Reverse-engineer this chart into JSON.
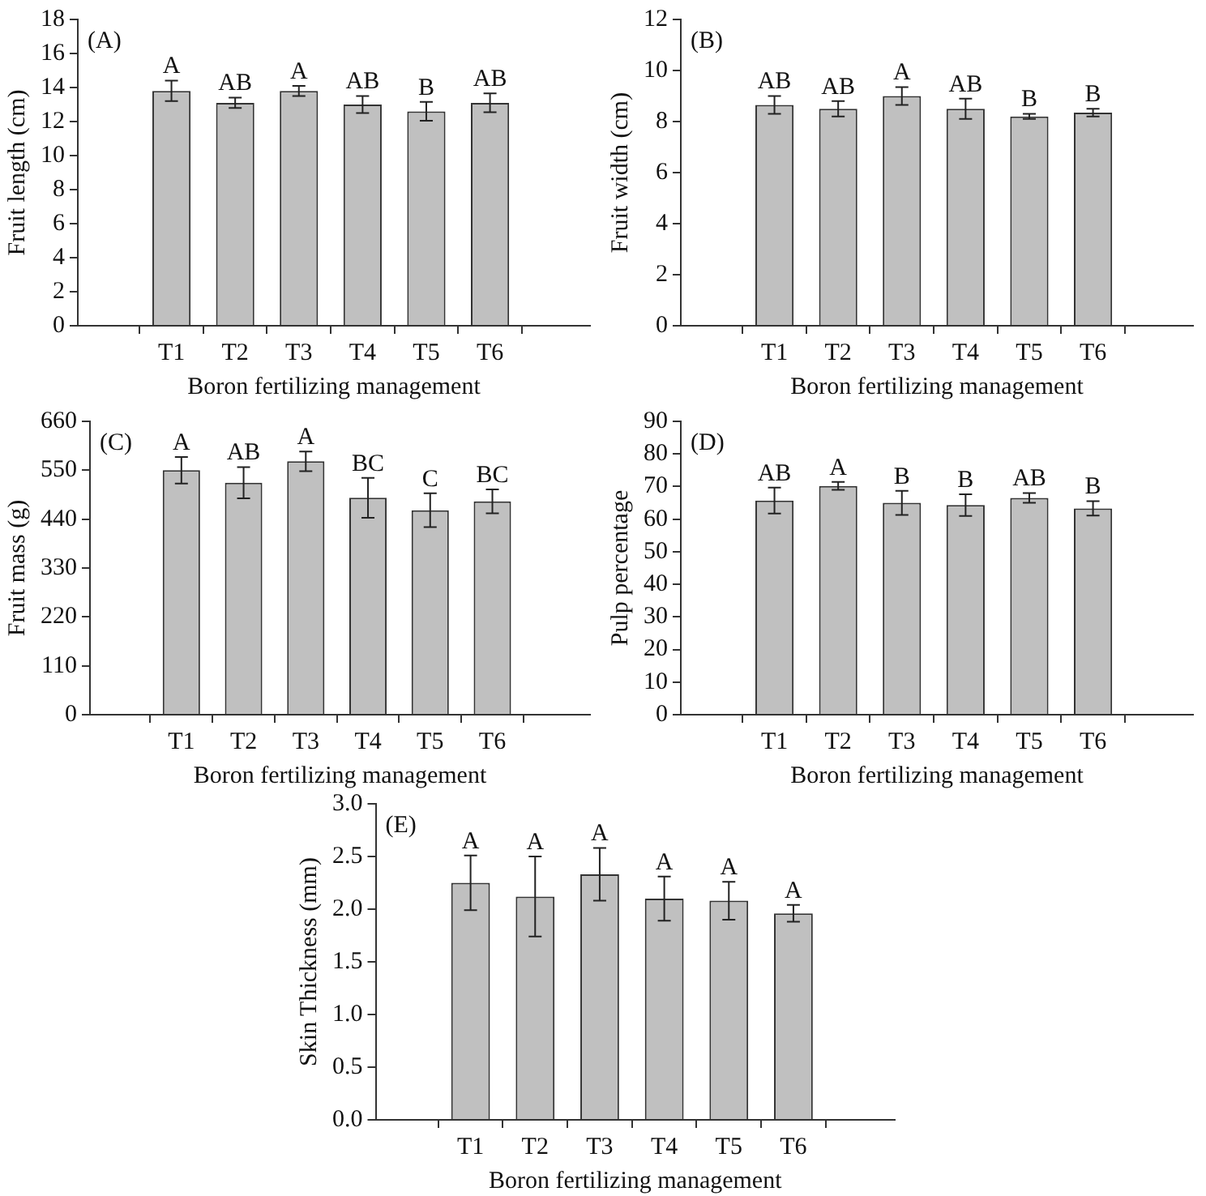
{
  "chart_data": [
    {
      "type": "bar",
      "categories": [
        "T1",
        "T2",
        "T3",
        "T4",
        "T5",
        "T6"
      ],
      "values": [
        13.8,
        13.1,
        13.8,
        13.0,
        12.6,
        13.1
      ],
      "errors": [
        0.6,
        0.3,
        0.3,
        0.5,
        0.55,
        0.55
      ],
      "color": "#c0c0c0",
      "xlabel": "Boron fertilizing management",
      "ylabel": "Fruit length (cm)",
      "ylim": [
        0,
        18
      ],
      "yticks": [
        0,
        2,
        4,
        6,
        8,
        10,
        12,
        14,
        16,
        18
      ],
      "grid": false,
      "legend": false,
      "annotations": [
        "(A)",
        {
          "text": "A",
          "x": "T1",
          "y": 14.4
        },
        {
          "text": "AB",
          "x": "T2",
          "y": 13.4
        },
        {
          "text": "A",
          "x": "T3",
          "y": 14.1
        },
        {
          "text": "AB",
          "x": "T4",
          "y": 13.5
        },
        {
          "text": "B",
          "x": "T5",
          "y": 13.15
        },
        {
          "text": "AB",
          "x": "T6",
          "y": 13.65
        }
      ]
    },
    {
      "type": "bar",
      "categories": [
        "T1",
        "T2",
        "T3",
        "T4",
        "T5",
        "T6"
      ],
      "values": [
        8.65,
        8.5,
        9.0,
        8.5,
        8.2,
        8.35
      ],
      "errors": [
        0.35,
        0.3,
        0.35,
        0.4,
        0.1,
        0.15
      ],
      "color": "#c0c0c0",
      "xlabel": "Boron fertilizing management",
      "ylabel": "Fruit width (cm)",
      "ylim": [
        0,
        12
      ],
      "yticks": [
        0,
        2,
        4,
        6,
        8,
        10,
        12
      ],
      "grid": false,
      "legend": false,
      "annotations": [
        "(B)",
        {
          "text": "AB",
          "x": "T1",
          "y": 9.0
        },
        {
          "text": "AB",
          "x": "T2",
          "y": 8.8
        },
        {
          "text": "A",
          "x": "T3",
          "y": 9.35
        },
        {
          "text": "AB",
          "x": "T4",
          "y": 8.9
        },
        {
          "text": "B",
          "x": "T5",
          "y": 8.3
        },
        {
          "text": "B",
          "x": "T6",
          "y": 8.5
        }
      ]
    },
    {
      "type": "bar",
      "categories": [
        "T1",
        "T2",
        "T3",
        "T4",
        "T5",
        "T6"
      ],
      "values": [
        550,
        522,
        570,
        488,
        460,
        480
      ],
      "errors": [
        30,
        35,
        22,
        45,
        38,
        27
      ],
      "color": "#c0c0c0",
      "xlabel": "Boron fertilizing management",
      "ylabel": "Fruit mass (g)",
      "ylim": [
        0,
        660
      ],
      "yticks": [
        0,
        110,
        220,
        330,
        440,
        550,
        660
      ],
      "grid": false,
      "legend": false,
      "annotations": [
        "(C)",
        {
          "text": "A",
          "x": "T1",
          "y": 580
        },
        {
          "text": "AB",
          "x": "T2",
          "y": 557
        },
        {
          "text": "A",
          "x": "T3",
          "y": 592
        },
        {
          "text": "BC",
          "x": "T4",
          "y": 533
        },
        {
          "text": "C",
          "x": "T5",
          "y": 498
        },
        {
          "text": "BC",
          "x": "T6",
          "y": 507
        }
      ]
    },
    {
      "type": "bar",
      "categories": [
        "T1",
        "T2",
        "T3",
        "T4",
        "T5",
        "T6"
      ],
      "values": [
        65.7,
        70.2,
        65.0,
        64.3,
        66.5,
        63.3
      ],
      "errors": [
        4,
        1.2,
        3.7,
        3.3,
        1.5,
        2.2
      ],
      "color": "#c0c0c0",
      "xlabel": "Boron fertilizing management",
      "ylabel": "Pulp percentage",
      "ylim": [
        0,
        90
      ],
      "yticks": [
        0,
        10,
        20,
        30,
        40,
        50,
        60,
        70,
        80,
        90
      ],
      "grid": false,
      "legend": false,
      "annotations": [
        "(D)",
        {
          "text": "AB",
          "x": "T1",
          "y": 69.7
        },
        {
          "text": "A",
          "x": "T2",
          "y": 71.4
        },
        {
          "text": "B",
          "x": "T3",
          "y": 68.7
        },
        {
          "text": "B",
          "x": "T4",
          "y": 67.6
        },
        {
          "text": "AB",
          "x": "T5",
          "y": 68
        },
        {
          "text": "B",
          "x": "T6",
          "y": 65.5
        }
      ]
    },
    {
      "type": "bar",
      "categories": [
        "T1",
        "T2",
        "T3",
        "T4",
        "T5",
        "T6"
      ],
      "values": [
        2.25,
        2.12,
        2.33,
        2.1,
        2.08,
        1.96
      ],
      "errors": [
        0.26,
        0.38,
        0.25,
        0.21,
        0.18,
        0.08
      ],
      "color": "#c0c0c0",
      "xlabel": "Boron fertilizing management",
      "ylabel": "Skin Thickness (mm)",
      "ylim": [
        0,
        3
      ],
      "yticks": [
        {
          "value": 0,
          "label": "0.0"
        },
        {
          "value": 0.5,
          "label": "0.5"
        },
        {
          "value": 1,
          "label": "1.0"
        },
        {
          "value": 1.5,
          "label": "1.5"
        },
        {
          "value": 2,
          "label": "2.0"
        },
        {
          "value": 2.5,
          "label": "2.5"
        },
        {
          "value": 3,
          "label": "3.0"
        }
      ],
      "grid": false,
      "legend": false,
      "annotations": [
        "(E)",
        {
          "text": "A",
          "x": "T1",
          "y": 2.51
        },
        {
          "text": "A",
          "x": "T2",
          "y": 2.5
        },
        {
          "text": "A",
          "x": "T3",
          "y": 2.58
        },
        {
          "text": "A",
          "x": "T4",
          "y": 2.31
        },
        {
          "text": "A",
          "x": "T5",
          "y": 2.26
        },
        {
          "text": "A",
          "x": "T6",
          "y": 2.04
        }
      ]
    }
  ]
}
